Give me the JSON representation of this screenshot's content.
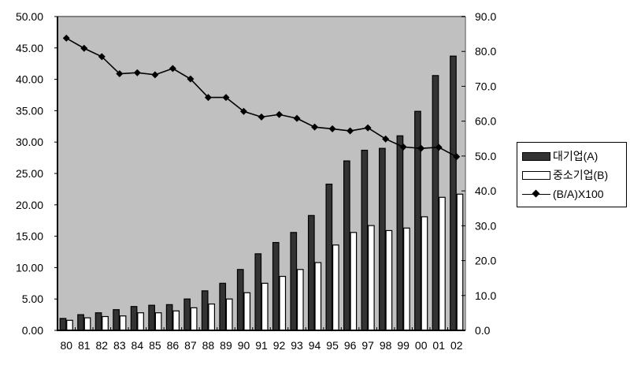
{
  "chart_data": {
    "type": "bar",
    "title": "",
    "xlabel": "",
    "ylabel": "",
    "categories": [
      "80",
      "81",
      "82",
      "83",
      "84",
      "85",
      "86",
      "87",
      "88",
      "89",
      "90",
      "91",
      "92",
      "93",
      "94",
      "95",
      "96",
      "97",
      "98",
      "99",
      "00",
      "01",
      "02"
    ],
    "series": [
      {
        "name": "대기업(A)",
        "type": "bar",
        "axis": "left",
        "color": "#333333",
        "values": [
          1.9,
          2.5,
          2.8,
          3.3,
          3.8,
          4.0,
          4.1,
          5.0,
          6.3,
          7.5,
          9.7,
          12.2,
          14.0,
          15.6,
          18.3,
          23.3,
          27.0,
          28.7,
          29.0,
          31.0,
          34.9,
          40.6,
          43.7
        ]
      },
      {
        "name": "중소기업(B)",
        "type": "bar",
        "axis": "left",
        "color": "#ffffff",
        "values": [
          1.6,
          2.0,
          2.2,
          2.3,
          2.8,
          2.8,
          3.1,
          3.6,
          4.2,
          5.0,
          6.0,
          7.5,
          8.6,
          9.7,
          10.8,
          13.6,
          15.6,
          16.7,
          15.9,
          16.3,
          18.1,
          21.2,
          21.7
        ]
      },
      {
        "name": "(B/A)X100",
        "type": "line",
        "axis": "right",
        "color": "#000000",
        "marker": "diamond",
        "values": [
          83.8,
          80.9,
          78.5,
          73.6,
          73.9,
          73.3,
          75.1,
          72.1,
          66.8,
          66.8,
          62.8,
          61.2,
          61.9,
          60.8,
          58.3,
          57.8,
          57.2,
          58.1,
          54.9,
          52.6,
          52.2,
          52.5,
          49.8
        ]
      }
    ],
    "ylim": [
      0,
      50
    ],
    "y_ticks": [
      "0.00",
      "5.00",
      "10.00",
      "15.00",
      "20.00",
      "25.00",
      "30.00",
      "35.00",
      "40.00",
      "45.00",
      "50.00"
    ],
    "y2lim": [
      0,
      90
    ],
    "y2_ticks": [
      "0.0",
      "10.0",
      "20.0",
      "30.0",
      "40.0",
      "50.0",
      "60.0",
      "70.0",
      "80.0",
      "90.0"
    ],
    "grid": false,
    "plot_background": "#c0c0c0",
    "legend_position": "right"
  },
  "legend": {
    "items": [
      {
        "label": "대기업(A)"
      },
      {
        "label": "중소기업(B)"
      },
      {
        "label": "(B/A)X100"
      }
    ]
  }
}
